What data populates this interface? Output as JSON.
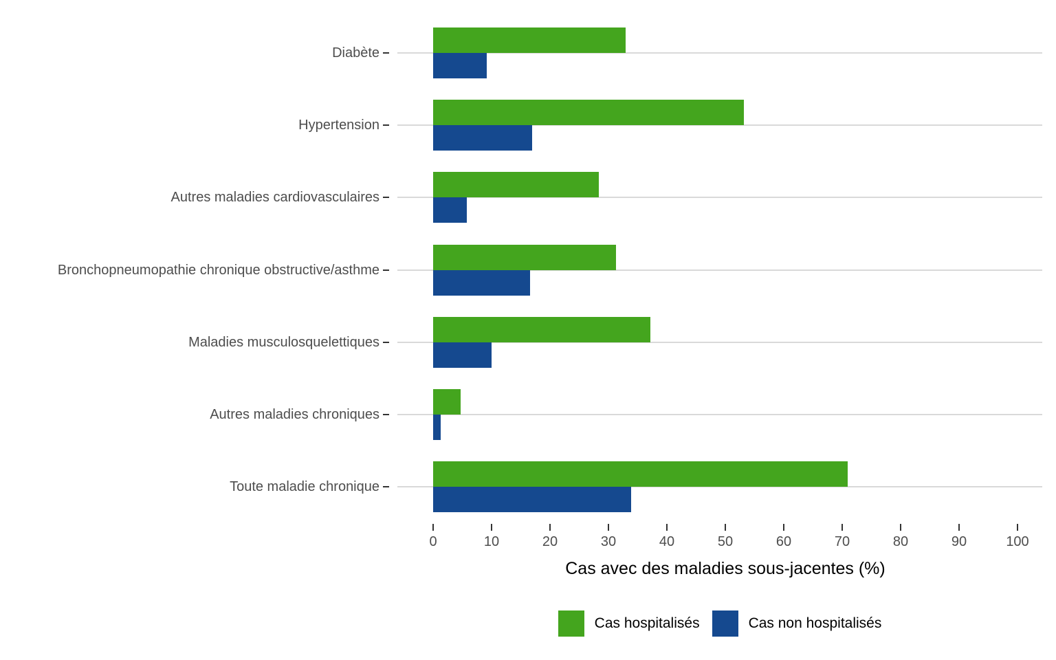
{
  "chart_data": {
    "type": "bar",
    "orientation": "horizontal",
    "title": "",
    "xlabel": "Cas avec des maladies sous-jacentes (%)",
    "ylabel": "",
    "xlim": [
      0,
      100
    ],
    "xticks": [
      0,
      10,
      20,
      30,
      40,
      50,
      60,
      70,
      80,
      90,
      100
    ],
    "grid": "horizontal-major-only",
    "legend_position": "bottom-center",
    "categories": [
      "Diabète",
      "Hypertension",
      "Autres maladies cardiovasculaires",
      "Bronchopneumopathie chronique obstructive/asthme",
      "Maladies musculosquelettiques",
      "Autres maladies chroniques",
      "Toute maladie chronique"
    ],
    "series": [
      {
        "name": "Cas hospitalisés",
        "color": "#44A51E",
        "values": [
          32.9,
          53.2,
          28.4,
          31.3,
          37.2,
          4.7,
          70.9
        ]
      },
      {
        "name": "Cas non hospitalisés",
        "color": "#15498F",
        "values": [
          9.2,
          16.9,
          5.8,
          16.6,
          10.0,
          1.3,
          33.9
        ]
      }
    ]
  },
  "colors": {
    "background": "#FFFFFF",
    "gridline": "#D9D9D9",
    "axis_text": "#4D4D4D",
    "tick_mark": "#333333",
    "axis_title": "#000000",
    "legend_text": "#000000"
  }
}
